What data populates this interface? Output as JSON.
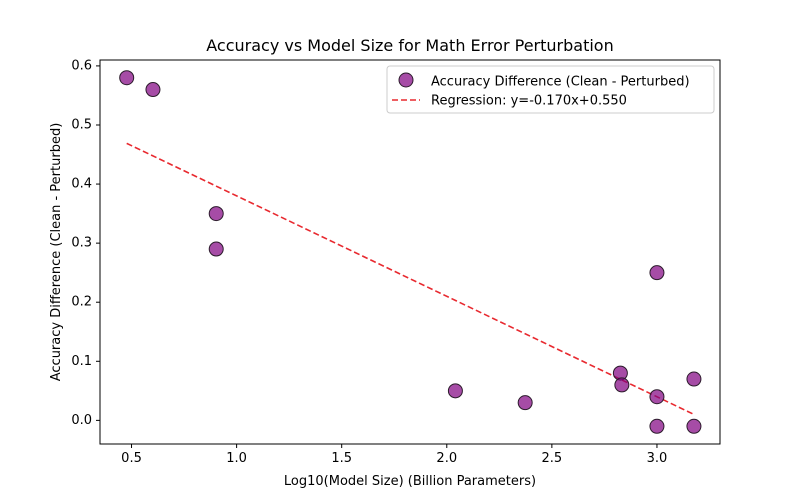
{
  "chart_data": {
    "type": "scatter",
    "title": "Accuracy vs Model Size for Math Error Perturbation",
    "xlabel": "Log10(Model Size) (Billion Parameters)",
    "ylabel": "Accuracy Difference (Clean - Perturbed)",
    "xlim": [
      0.35,
      3.3
    ],
    "ylim": [
      -0.04,
      0.61
    ],
    "xticks": [
      0.5,
      1.0,
      1.5,
      2.0,
      2.5,
      3.0
    ],
    "xtick_labels": [
      "0.5",
      "1.0",
      "1.5",
      "2.0",
      "2.5",
      "3.0"
    ],
    "yticks": [
      0.0,
      0.1,
      0.2,
      0.3,
      0.4,
      0.5,
      0.6
    ],
    "ytick_labels": [
      "0.0",
      "0.1",
      "0.2",
      "0.3",
      "0.4",
      "0.5",
      "0.6"
    ],
    "series": [
      {
        "name": "Accuracy Difference (Clean - Perturbed)",
        "kind": "scatter",
        "color": "#800080",
        "edge_color": "#2b1b2b",
        "points": [
          {
            "x": 0.477,
            "y": 0.58
          },
          {
            "x": 0.602,
            "y": 0.56
          },
          {
            "x": 0.903,
            "y": 0.35
          },
          {
            "x": 0.903,
            "y": 0.29
          },
          {
            "x": 2.041,
            "y": 0.05
          },
          {
            "x": 2.373,
            "y": 0.03
          },
          {
            "x": 2.826,
            "y": 0.08
          },
          {
            "x": 2.833,
            "y": 0.06
          },
          {
            "x": 3.0,
            "y": 0.25
          },
          {
            "x": 3.0,
            "y": 0.04
          },
          {
            "x": 3.0,
            "y": -0.01
          },
          {
            "x": 3.176,
            "y": 0.07
          },
          {
            "x": 3.176,
            "y": -0.01
          }
        ]
      },
      {
        "name": "Regression: y=-0.170x+0.550",
        "kind": "line",
        "style": "dashed",
        "color": "#e8292f",
        "slope": -0.17,
        "intercept": 0.55,
        "x_range": [
          0.477,
          3.176
        ]
      }
    ],
    "legend_position": "top-right"
  }
}
